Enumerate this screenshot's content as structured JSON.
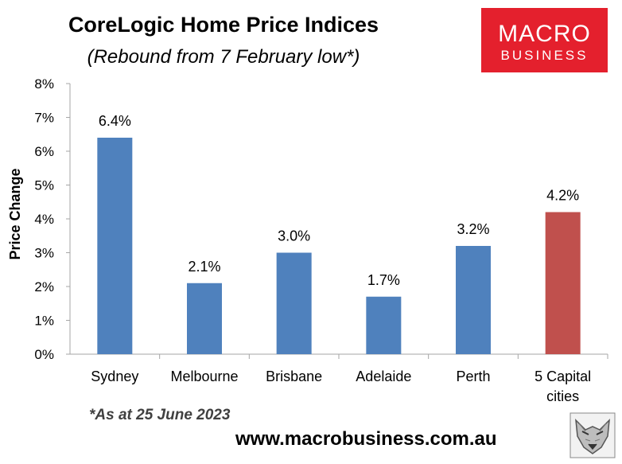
{
  "brand": {
    "logo_line1": "MACRO",
    "logo_line2": "BUSINESS",
    "logo_color": "#e4202d",
    "website": "www.macrobusiness.com.au"
  },
  "footnote": "*As at 25 June 2023",
  "chart_data": {
    "type": "bar",
    "title": "CoreLogic Home Price Indices",
    "subtitle": "(Rebound from 7 February low*)",
    "categories": [
      "Sydney",
      "Melbourne",
      "Brisbane",
      "Adelaide",
      "Perth",
      "5 Capital cities"
    ],
    "category_lines": [
      [
        "Sydney"
      ],
      [
        "Melbourne"
      ],
      [
        "Brisbane"
      ],
      [
        "Adelaide"
      ],
      [
        "Perth"
      ],
      [
        "5 Capital",
        "cities"
      ]
    ],
    "values": [
      6.4,
      2.1,
      3.0,
      1.7,
      3.2,
      4.2
    ],
    "data_labels": [
      "6.4%",
      "2.1%",
      "3.0%",
      "1.7%",
      "3.2%",
      "4.2%"
    ],
    "bar_colors": [
      "#4f81bd",
      "#4f81bd",
      "#4f81bd",
      "#4f81bd",
      "#4f81bd",
      "#c0504d"
    ],
    "ylabel": "Price Change",
    "xlabel": "",
    "ylim": [
      0,
      8
    ],
    "yticks": [
      0,
      1,
      2,
      3,
      4,
      5,
      6,
      7,
      8
    ],
    "ytick_labels": [
      "0%",
      "1%",
      "2%",
      "3%",
      "4%",
      "5%",
      "6%",
      "7%",
      "8%"
    ],
    "grid": false,
    "legend": "none"
  }
}
